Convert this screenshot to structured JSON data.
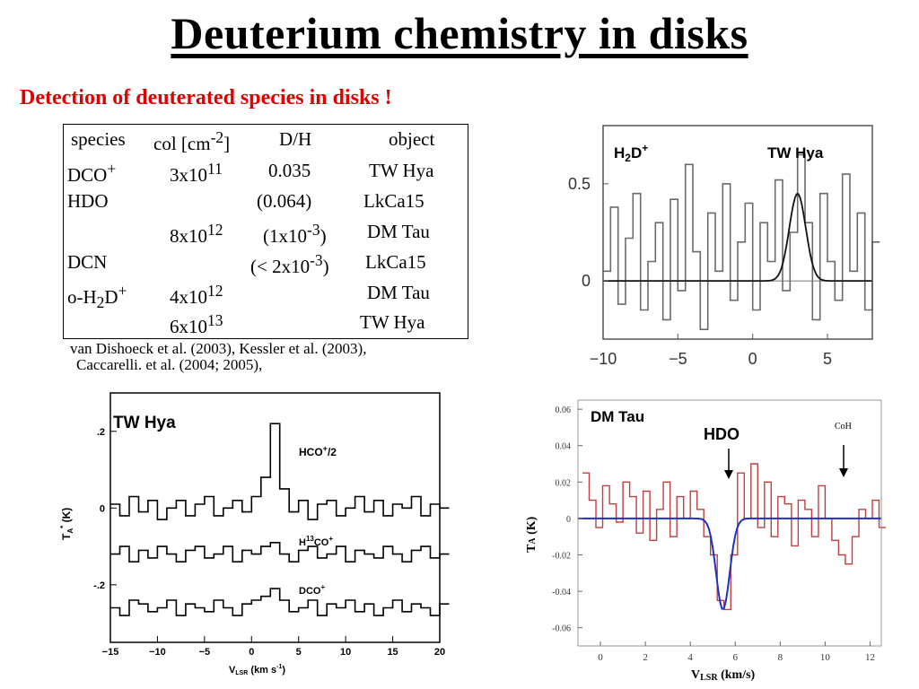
{
  "slide": {
    "title": "Deuterium chemistry in disks",
    "subtitle": "Detection of deuterated species in disks !"
  },
  "table": {
    "headers": [
      "species",
      "col [cm-2]",
      "D/H",
      "object"
    ],
    "rows": [
      [
        "DCO+",
        "3x1011",
        "0.035",
        "TW Hya"
      ],
      [
        "HDO",
        "",
        "(0.064)",
        "LkCa15"
      ],
      [
        "",
        "8x1012",
        "(1x10-3)",
        "DM Tau"
      ],
      [
        "DCN",
        "",
        "(< 2x10-3)",
        "LkCa15"
      ],
      [
        "o-H2D+",
        "4x1012",
        "",
        "DM Tau"
      ],
      [
        "",
        "6x1013",
        "",
        "TW Hya"
      ]
    ]
  },
  "references": [
    "van Dishoeck et al. (2003), Kessler et al. (2003),",
    "Caccarelli. et al. (2004; 2005),"
  ],
  "chart_data": [
    {
      "type": "line",
      "title": "",
      "annotations": [
        "H2D+",
        "TW Hya"
      ],
      "xlim": [
        -10,
        8
      ],
      "ylim": [
        -0.3,
        0.8
      ],
      "xticks": [
        "−10",
        "−5",
        "0",
        "5"
      ],
      "yticks": [
        "0.5",
        "0"
      ],
      "series": [
        {
          "kind": "spectrum-histogram",
          "x": [
            -10,
            -9.5,
            -9,
            -8.5,
            -8,
            -7.5,
            -7,
            -6.5,
            -6,
            -5.5,
            -5,
            -4.5,
            -4,
            -3.5,
            -3,
            -2.5,
            -2,
            -1.5,
            -1,
            -0.5,
            0,
            0.5,
            1,
            1.5,
            2,
            2.5,
            3,
            3.5,
            4,
            4.5,
            5,
            5.5,
            6,
            6.5,
            7,
            7.5,
            8
          ],
          "y": [
            0.05,
            0.38,
            -0.12,
            0.22,
            0.45,
            -0.15,
            0.1,
            0.3,
            -0.2,
            0.42,
            -0.05,
            0.6,
            0.15,
            -0.25,
            0.35,
            0.05,
            0.5,
            -0.1,
            0.2,
            0.4,
            -0.15,
            0.3,
            0.1,
            0.52,
            -0.05,
            0.25,
            0.65,
            0.3,
            -0.2,
            0.45,
            0.1,
            -0.1,
            0.55,
            0.05,
            0.35,
            -0.15,
            0.2
          ]
        },
        {
          "kind": "gaussian-fit",
          "center": 3.0,
          "amplitude": 0.45,
          "sigma": 0.55
        }
      ]
    },
    {
      "type": "line",
      "title": "",
      "annotations": [
        "TW Hya",
        "HCO+/2",
        "H13CO+",
        "DCO+"
      ],
      "xlabel": "VLSR (km s-1)",
      "ylabel": "TA* (K)",
      "xlim": [
        -15,
        20
      ],
      "ylim": [
        -0.35,
        0.3
      ],
      "xticks": [
        "−15",
        "−10",
        "−5",
        "0",
        "5",
        "10",
        "15",
        "20"
      ],
      "yticks": [
        ".2",
        "0",
        "-.2"
      ],
      "series": [
        {
          "name": "HCO+/2",
          "offset": 0.0,
          "x": [
            -15,
            -14,
            -13,
            -12,
            -11,
            -10,
            -9,
            -8,
            -7,
            -6,
            -5,
            -4,
            -3,
            -2,
            -1,
            0,
            1,
            2,
            3,
            4,
            5,
            6,
            7,
            8,
            9,
            10,
            11,
            12,
            13,
            14,
            15,
            16,
            17,
            18,
            19,
            20
          ],
          "y": [
            0.01,
            -0.02,
            0.03,
            -0.01,
            0.02,
            -0.03,
            0.0,
            0.02,
            -0.02,
            0.01,
            0.03,
            -0.02,
            0.0,
            0.02,
            -0.01,
            0.03,
            0.08,
            0.22,
            0.05,
            -0.01,
            0.02,
            -0.03,
            0.01,
            0.02,
            -0.02,
            0.0,
            0.03,
            -0.01,
            0.02,
            -0.02,
            0.01,
            0.0,
            0.03,
            -0.02,
            0.01,
            0.0
          ]
        },
        {
          "name": "H13CO+",
          "offset": -0.12,
          "x": [
            -15,
            -14,
            -13,
            -12,
            -11,
            -10,
            -9,
            -8,
            -7,
            -6,
            -5,
            -4,
            -3,
            -2,
            -1,
            0,
            1,
            2,
            3,
            4,
            5,
            6,
            7,
            8,
            9,
            10,
            11,
            12,
            13,
            14,
            15,
            16,
            17,
            18,
            19,
            20
          ],
          "y": [
            0.0,
            0.02,
            -0.02,
            0.01,
            -0.01,
            0.02,
            0.0,
            -0.02,
            0.01,
            0.02,
            -0.01,
            0.0,
            0.02,
            -0.02,
            0.01,
            0.0,
            0.02,
            0.03,
            0.0,
            -0.02,
            0.01,
            0.02,
            -0.01,
            0.0,
            0.02,
            -0.02,
            0.01,
            0.0,
            -0.01,
            0.02,
            0.0,
            -0.02,
            0.01,
            0.02,
            -0.01,
            0.0
          ]
        },
        {
          "name": "DCO+",
          "offset": -0.26,
          "x": [
            -15,
            -14,
            -13,
            -12,
            -11,
            -10,
            -9,
            -8,
            -7,
            -6,
            -5,
            -4,
            -3,
            -2,
            -1,
            0,
            1,
            2,
            3,
            4,
            5,
            6,
            7,
            8,
            9,
            10,
            11,
            12,
            13,
            14,
            15,
            16,
            17,
            18,
            19,
            20
          ],
          "y": [
            0.0,
            -0.02,
            0.02,
            0.01,
            -0.01,
            0.0,
            0.02,
            -0.02,
            0.01,
            0.0,
            -0.01,
            0.02,
            0.0,
            -0.02,
            0.01,
            0.02,
            0.03,
            0.05,
            0.02,
            -0.01,
            0.0,
            0.02,
            -0.02,
            0.01,
            0.0,
            0.02,
            -0.01,
            0.01,
            -0.02,
            0.0,
            0.02,
            -0.01,
            0.01,
            0.0,
            -0.02,
            0.01
          ]
        }
      ]
    },
    {
      "type": "line",
      "title": "",
      "annotations": [
        "DM Tau",
        "HDO",
        "CoH"
      ],
      "xlabel": "VLSR (km/s)",
      "ylabel": "TA (K)",
      "xlim": [
        -1,
        12.5
      ],
      "ylim": [
        -0.07,
        0.065
      ],
      "xticks": [
        "0",
        "2",
        "4",
        "6",
        "8",
        "10",
        "12"
      ],
      "yticks": [
        "0.06",
        "0.04",
        "0.02",
        "0",
        "-0.02",
        "-0.04",
        "-0.06"
      ],
      "series": [
        {
          "kind": "spectrum-histogram",
          "color": "#c04040",
          "x": [
            -0.8,
            -0.5,
            -0.2,
            0.1,
            0.4,
            0.7,
            1.0,
            1.3,
            1.6,
            1.9,
            2.2,
            2.5,
            2.8,
            3.1,
            3.4,
            3.7,
            4.0,
            4.3,
            4.6,
            4.9,
            5.2,
            5.5,
            5.8,
            6.1,
            6.4,
            6.7,
            7.0,
            7.3,
            7.6,
            7.9,
            8.2,
            8.5,
            8.8,
            9.1,
            9.4,
            9.7,
            10.0,
            10.3,
            10.6,
            10.9,
            11.2,
            11.5,
            11.8,
            12.1,
            12.4
          ],
          "y": [
            0.025,
            0.01,
            -0.005,
            0.018,
            0.008,
            -0.002,
            0.02,
            0.012,
            -0.008,
            0.015,
            -0.012,
            0.005,
            0.02,
            -0.01,
            0.012,
            0.0,
            0.015,
            0.005,
            -0.01,
            -0.02,
            -0.045,
            -0.05,
            -0.02,
            0.025,
            0.0,
            0.03,
            -0.005,
            0.02,
            -0.01,
            0.012,
            0.008,
            -0.015,
            0.01,
            0.005,
            -0.01,
            0.018,
            0.0,
            -0.012,
            -0.02,
            -0.025,
            -0.01,
            0.005,
            0.0,
            0.01,
            -0.005
          ]
        },
        {
          "kind": "gaussian-fit",
          "color": "#2030c8",
          "center": 5.45,
          "amplitude": -0.05,
          "sigma": 0.3
        }
      ]
    }
  ]
}
